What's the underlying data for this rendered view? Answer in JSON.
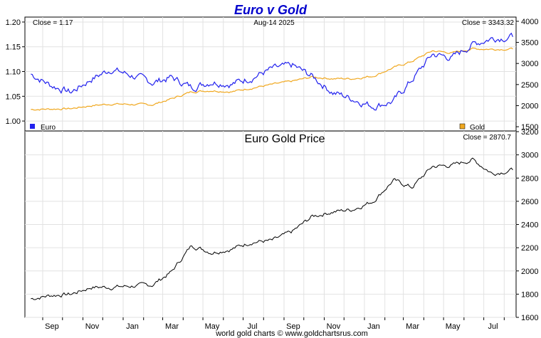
{
  "page": {
    "title": "Euro v Gold",
    "footer": "world gold charts © www.goldchartsrus.com"
  },
  "colors": {
    "euro": "#2222ee",
    "gold_usd": "#f0a820",
    "gold_eur": "#000000",
    "grid": "#e2e2e2",
    "title": "#0000cc"
  },
  "chart_data": [
    {
      "type": "line",
      "panel": "top",
      "date_label": "Aug-14  2025",
      "left_close_label": "Close = 1.17",
      "right_close_label": "Close = 3343.32",
      "left_axis": {
        "ylim": [
          0.98,
          1.21
        ],
        "ticks": [
          "1.00",
          "1.05",
          "1.10",
          "1.15",
          "1.20"
        ]
      },
      "right_axis": {
        "ylim": [
          1400,
          4100
        ],
        "ticks": [
          "1500",
          "2000",
          "2500",
          "3000",
          "3500",
          "4000"
        ]
      },
      "x_ticks": [
        "Sep",
        "Nov",
        "Jan",
        "Mar",
        "May",
        "Jul",
        "Sep",
        "Nov",
        "Jan",
        "Mar",
        "May",
        "Jul"
      ],
      "legend": [
        {
          "name": "Euro",
          "position": "bottom-left",
          "color": "#2222ee"
        },
        {
          "name": "Gold",
          "position": "bottom-right",
          "color": "#f0a820"
        }
      ],
      "series": [
        {
          "name": "Euro",
          "axis": "left",
          "x": [
            "2023-08-14",
            "2023-09-14",
            "2023-10-14",
            "2023-11-14",
            "2023-12-14",
            "2024-01-14",
            "2024-02-14",
            "2024-03-14",
            "2024-04-14",
            "2024-05-14",
            "2024-06-14",
            "2024-07-14",
            "2024-08-14",
            "2024-09-14",
            "2024-10-14",
            "2024-11-14",
            "2024-12-14",
            "2025-01-14",
            "2025-02-14",
            "2025-03-14",
            "2025-04-14",
            "2025-05-14",
            "2025-06-14",
            "2025-07-14",
            "2025-08-14"
          ],
          "values": [
            1.095,
            1.072,
            1.058,
            1.085,
            1.105,
            1.092,
            1.078,
            1.088,
            1.068,
            1.08,
            1.075,
            1.088,
            1.105,
            1.112,
            1.09,
            1.058,
            1.045,
            1.03,
            1.04,
            1.083,
            1.135,
            1.128,
            1.155,
            1.168,
            1.17
          ]
        },
        {
          "name": "Gold",
          "axis": "right",
          "x": [
            "2023-08-14",
            "2023-09-14",
            "2023-10-14",
            "2023-11-14",
            "2023-12-14",
            "2024-01-14",
            "2024-02-14",
            "2024-03-14",
            "2024-04-14",
            "2024-05-14",
            "2024-06-14",
            "2024-07-14",
            "2024-08-14",
            "2024-09-14",
            "2024-10-14",
            "2024-11-14",
            "2024-12-14",
            "2025-01-14",
            "2025-02-14",
            "2025-03-14",
            "2025-04-14",
            "2025-05-14",
            "2025-06-14",
            "2025-07-14",
            "2025-08-14"
          ],
          "values": [
            1910,
            1920,
            1930,
            2000,
            2040,
            2030,
            2020,
            2160,
            2330,
            2360,
            2330,
            2420,
            2500,
            2580,
            2680,
            2640,
            2640,
            2700,
            2900,
            3050,
            3300,
            3250,
            3350,
            3340,
            3343
          ]
        }
      ]
    },
    {
      "type": "line",
      "panel": "bottom",
      "title": "Euro Gold Price",
      "close_label": "Close = 2870.7",
      "ylim": [
        1600,
        3200
      ],
      "y_ticks": [
        "1600",
        "1800",
        "2000",
        "2200",
        "2400",
        "2600",
        "2800",
        "3000",
        "3200"
      ],
      "x_ticks": [
        "Sep",
        "Nov",
        "Jan",
        "Mar",
        "May",
        "Jul",
        "Sep",
        "Nov",
        "Jan",
        "Mar",
        "May",
        "Jul"
      ],
      "series": [
        {
          "axis": "right",
          "x": [
            "2023-08-14",
            "2023-09-14",
            "2023-10-14",
            "2023-11-14",
            "2023-12-14",
            "2024-01-14",
            "2024-02-14",
            "2024-03-14",
            "2024-04-14",
            "2024-05-14",
            "2024-06-14",
            "2024-07-14",
            "2024-08-14",
            "2024-09-14",
            "2024-10-14",
            "2024-11-14",
            "2024-12-14",
            "2025-01-14",
            "2025-02-14",
            "2025-03-14",
            "2025-04-14",
            "2025-05-14",
            "2025-06-14",
            "2025-07-14",
            "2025-08-14"
          ],
          "values": [
            1760,
            1790,
            1800,
            1860,
            1860,
            1870,
            1880,
            1990,
            2220,
            2160,
            2190,
            2250,
            2260,
            2340,
            2470,
            2510,
            2530,
            2600,
            2780,
            2720,
            2900,
            2910,
            2960,
            2840,
            2870
          ]
        }
      ]
    }
  ]
}
